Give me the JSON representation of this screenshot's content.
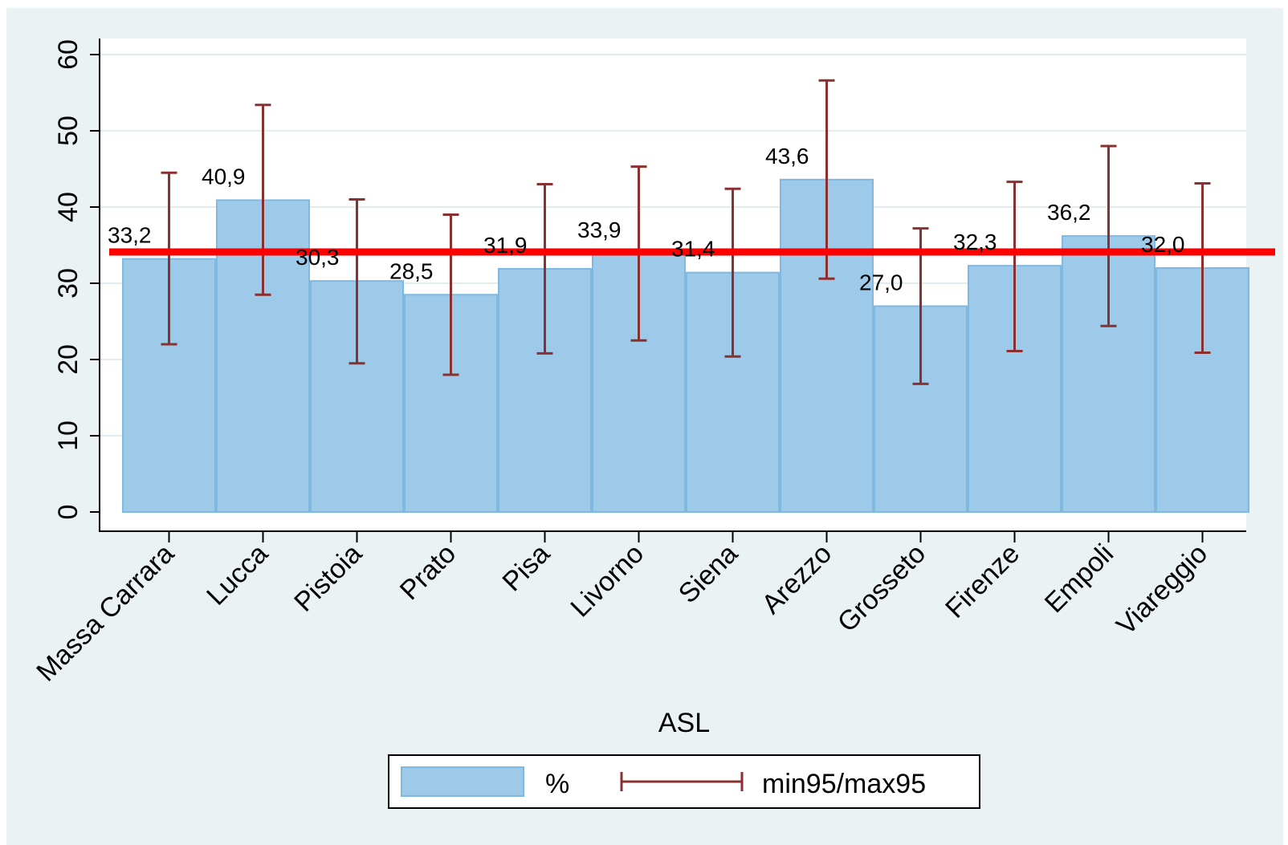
{
  "chart_data": {
    "type": "bar",
    "xlabel": "ASL",
    "ylabel": "",
    "ylim": [
      0,
      60
    ],
    "yticks": [
      0,
      10,
      20,
      30,
      40,
      50,
      60
    ],
    "grid": true,
    "categories": [
      "Massa Carrara",
      "Lucca",
      "Pistoia",
      "Prato",
      "Pisa",
      "Livorno",
      "Siena",
      "Arezzo",
      "Grosseto",
      "Firenze",
      "Empoli",
      "Viareggio"
    ],
    "value_labels": [
      "33,2",
      "40,9",
      "30,3",
      "28,5",
      "31,9",
      "33,9",
      "31,4",
      "43,6",
      "27,0",
      "32,3",
      "36,2",
      "32,0"
    ],
    "series": [
      {
        "name": "%",
        "values": [
          33.2,
          40.9,
          30.3,
          28.5,
          31.9,
          33.9,
          31.4,
          43.6,
          27.0,
          32.3,
          36.2,
          32.0
        ],
        "color": "#9ecae9"
      },
      {
        "name": "min95/max95",
        "type": "errorbar",
        "color": "#8b3030",
        "low": [
          22.0,
          28.5,
          19.5,
          18.0,
          20.8,
          22.5,
          20.4,
          30.6,
          16.8,
          21.1,
          24.4,
          20.9
        ],
        "high": [
          44.5,
          53.4,
          41.0,
          39.0,
          43.0,
          45.3,
          42.4,
          56.6,
          37.2,
          43.3,
          48.0,
          43.1
        ]
      }
    ],
    "reference_line": {
      "value": 34.1,
      "color": "#ff0000"
    },
    "legend": {
      "position": "bottom-center",
      "entries": [
        "%",
        "min95/max95"
      ]
    },
    "colors": {
      "background": "#eaf2f3",
      "plot_area": "#ffffff",
      "bar_edge": "#7fb8e1",
      "grid": "#e3ecee"
    }
  }
}
